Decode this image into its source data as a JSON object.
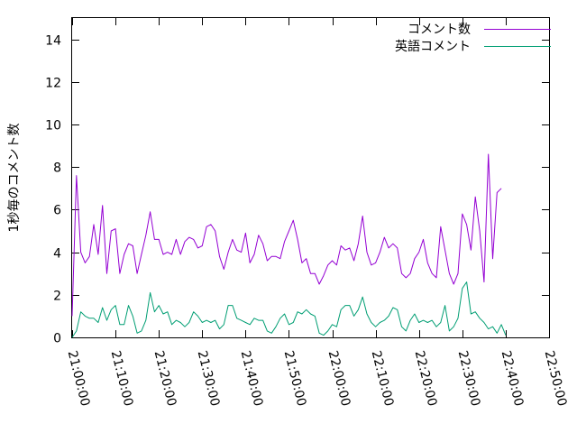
{
  "chart_data": {
    "type": "line",
    "title": "",
    "xlabel": "",
    "ylabel": "1秒毎のコメント数",
    "ylim": [
      0,
      15
    ],
    "xlim": [
      "21:00:00",
      "22:50:00"
    ],
    "x_ticks": [
      "21:00:00",
      "21:10:00",
      "21:20:00",
      "21:30:00",
      "21:40:00",
      "21:50:00",
      "22:00:00",
      "22:10:00",
      "22:20:00",
      "22:30:00",
      "22:40:00",
      "22:50:00"
    ],
    "y_ticks": [
      "0",
      "2",
      "4",
      "6",
      "8",
      "10",
      "12",
      "14"
    ],
    "legend_position": "top-right",
    "grid": false,
    "x_unit": "minutes from 21:00:00",
    "series": [
      {
        "name": "コメント数",
        "color": "#9400d3",
        "x": [
          0,
          1,
          2,
          3,
          4,
          5,
          6,
          7,
          8,
          9,
          10,
          11,
          12,
          13,
          14,
          15,
          16,
          17,
          18,
          19,
          20,
          21,
          22,
          23,
          24,
          25,
          26,
          27,
          28,
          29,
          30,
          31,
          32,
          33,
          34,
          35,
          36,
          37,
          38,
          39,
          40,
          41,
          42,
          43,
          44,
          45,
          46,
          47,
          48,
          49,
          50,
          51,
          52,
          53,
          54,
          55,
          56,
          57,
          58,
          59,
          60,
          61,
          62,
          63,
          64,
          65,
          66,
          67,
          68,
          69,
          70,
          71,
          72,
          73,
          74,
          75,
          76,
          77,
          78,
          79,
          80,
          81,
          82,
          83,
          84,
          85,
          86,
          87,
          88,
          89,
          90,
          91,
          92,
          93,
          94,
          95,
          96,
          97,
          98,
          99,
          100,
          101,
          102,
          103,
          104,
          105,
          106,
          107,
          108,
          109,
          110,
          111
        ],
        "values": [
          1.0,
          7.6,
          4.0,
          3.5,
          3.8,
          5.3,
          3.9,
          6.2,
          3.0,
          5.0,
          5.1,
          3.0,
          3.9,
          4.4,
          4.3,
          3.0,
          3.9,
          4.8,
          5.9,
          4.6,
          4.6,
          3.9,
          4.0,
          3.9,
          4.6,
          3.9,
          4.5,
          4.7,
          4.6,
          4.2,
          4.3,
          5.2,
          5.3,
          5.0,
          3.8,
          3.2,
          4.0,
          4.6,
          4.1,
          4.0,
          4.9,
          3.5,
          3.9,
          4.8,
          4.4,
          3.6,
          3.8,
          3.8,
          3.7,
          4.5,
          5.0,
          5.5,
          4.6,
          3.5,
          3.7,
          3.0,
          3.0,
          2.5,
          2.9,
          3.4,
          3.6,
          3.4,
          4.3,
          4.1,
          4.2,
          3.6,
          4.4,
          5.7,
          4.0,
          3.4,
          3.5,
          4.0,
          4.7,
          4.2,
          4.4,
          4.2,
          3.0,
          2.8,
          3.0,
          3.7,
          4.0,
          4.6,
          3.5,
          3.0,
          2.8,
          5.2,
          4.1,
          3.0,
          2.5,
          3.0,
          5.8,
          5.3,
          4.1,
          6.6,
          5.0,
          2.6,
          8.6,
          3.7,
          6.8,
          7.0,
          null,
          null,
          null,
          null,
          null,
          null,
          null,
          null,
          null,
          null,
          null,
          null
        ]
      },
      {
        "name": "英語コメント",
        "color": "#009e73",
        "x": [
          0,
          1,
          2,
          3,
          4,
          5,
          6,
          7,
          8,
          9,
          10,
          11,
          12,
          13,
          14,
          15,
          16,
          17,
          18,
          19,
          20,
          21,
          22,
          23,
          24,
          25,
          26,
          27,
          28,
          29,
          30,
          31,
          32,
          33,
          34,
          35,
          36,
          37,
          38,
          39,
          40,
          41,
          42,
          43,
          44,
          45,
          46,
          47,
          48,
          49,
          50,
          51,
          52,
          53,
          54,
          55,
          56,
          57,
          58,
          59,
          60,
          61,
          62,
          63,
          64,
          65,
          66,
          67,
          68,
          69,
          70,
          71,
          72,
          73,
          74,
          75,
          76,
          77,
          78,
          79,
          80,
          81,
          82,
          83,
          84,
          85,
          86,
          87,
          88,
          89,
          90,
          91,
          92,
          93,
          94,
          95,
          96,
          97,
          98,
          99,
          100,
          101,
          102,
          103,
          104,
          105,
          106,
          107,
          108,
          109,
          110,
          111
        ],
        "values": [
          0.0,
          0.3,
          1.2,
          1.0,
          0.9,
          0.9,
          0.7,
          1.4,
          0.8,
          1.3,
          1.5,
          0.6,
          0.6,
          1.5,
          1.0,
          0.2,
          0.3,
          0.8,
          2.1,
          1.2,
          1.5,
          1.1,
          1.2,
          0.6,
          0.8,
          0.7,
          0.5,
          0.7,
          1.2,
          1.0,
          0.7,
          0.8,
          0.7,
          0.8,
          0.4,
          0.6,
          1.5,
          1.5,
          0.9,
          0.8,
          0.7,
          0.6,
          0.9,
          0.8,
          0.8,
          0.3,
          0.2,
          0.5,
          0.9,
          1.1,
          0.6,
          0.7,
          1.2,
          1.1,
          1.3,
          1.1,
          1.0,
          0.2,
          0.1,
          0.3,
          0.6,
          0.5,
          1.3,
          1.5,
          1.5,
          1.0,
          1.3,
          1.9,
          1.1,
          0.7,
          0.5,
          0.7,
          0.8,
          1.0,
          1.4,
          1.3,
          0.5,
          0.3,
          0.8,
          1.1,
          0.7,
          0.8,
          0.7,
          0.8,
          0.5,
          0.7,
          1.5,
          0.3,
          0.5,
          0.9,
          2.3,
          2.6,
          1.1,
          1.2,
          0.9,
          0.7,
          0.4,
          0.5,
          0.2,
          0.6,
          0.1,
          null,
          null,
          null,
          null,
          null,
          null,
          null,
          null,
          null,
          null,
          null
        ]
      }
    ]
  }
}
